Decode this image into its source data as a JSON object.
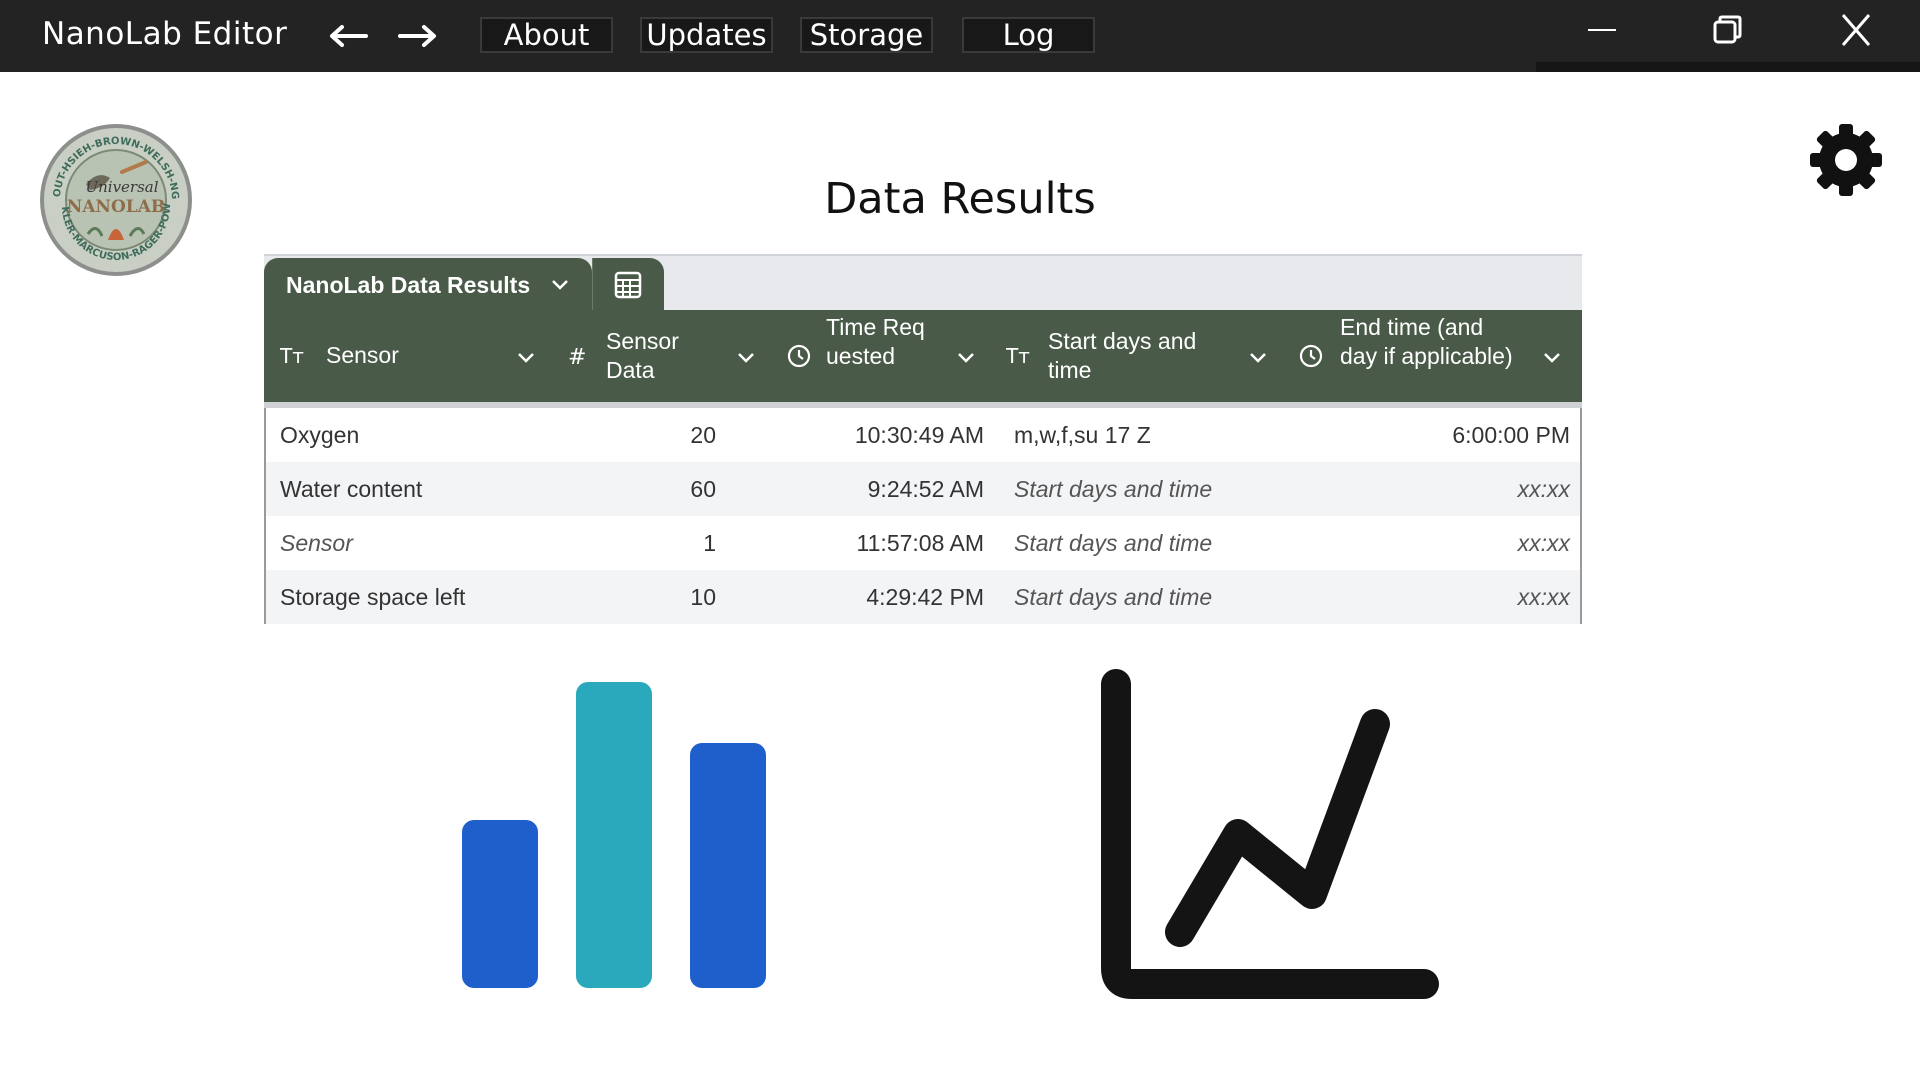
{
  "window": {
    "title": "NanoLab Editor",
    "menu": [
      {
        "label": "About"
      },
      {
        "label": "Updates"
      },
      {
        "label": "Storage"
      },
      {
        "label": "Log"
      }
    ]
  },
  "page": {
    "title": "Data Results",
    "logo_text": [
      "Universal",
      "NANOLAB",
      "TEMPLE-NAVOUT-HSIEH-BROWN-WELSH-NGUYEN-WANG",
      "WINKLER-MARCUSON-RAGER-POWELL"
    ]
  },
  "table": {
    "tab_label": "NanoLab Data Results",
    "columns": [
      {
        "label": "Sensor",
        "icon": "text-type-icon"
      },
      {
        "label": "Sensor Data",
        "icon": "number-icon"
      },
      {
        "label": "Time Requested",
        "icon": "clock-icon"
      },
      {
        "label": "Start days and time",
        "icon": "text-type-icon"
      },
      {
        "label": "End time (and day if applicable)",
        "icon": "clock-icon"
      }
    ],
    "rows": [
      {
        "sensor": "Oxygen",
        "data": "20",
        "time": "10:30:49 AM",
        "start": "m,w,f,su 17 Z",
        "end": "6:00:00 PM"
      },
      {
        "sensor": "Water content",
        "data": "60",
        "time": "9:24:52 AM",
        "start": "Start days and time",
        "end": "xx:xx"
      },
      {
        "sensor": "Sensor",
        "data": "1",
        "time": "11:57:08 AM",
        "start": "Start days and time",
        "end": "xx:xx"
      },
      {
        "sensor": "Storage space left",
        "data": "10",
        "time": "4:29:42 PM",
        "start": "Start days and time",
        "end": "xx:xx"
      }
    ]
  },
  "icons": {
    "bar_chart": {
      "name": "bar-chart-icon",
      "colors": [
        "#1f5fcc",
        "#2aa9bd",
        "#1f5fcc"
      ]
    },
    "line_chart": {
      "name": "line-chart-icon",
      "color": "#141414"
    },
    "settings": {
      "name": "gear-icon",
      "color": "#111111"
    }
  },
  "colors": {
    "titlebar": "#232323",
    "table_header": "#4a5a49",
    "tab_bar": "#e8e9ec"
  }
}
